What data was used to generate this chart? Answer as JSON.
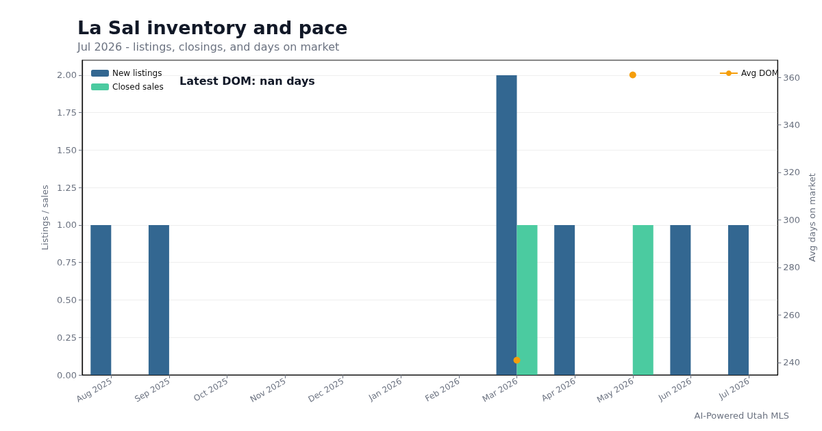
{
  "chart_data": {
    "type": "bar",
    "title": "La Sal inventory and pace",
    "subtitle": "Jul 2026 - listings, closings, and days on market",
    "categories": [
      "Aug 2025",
      "Sep 2025",
      "Oct 2025",
      "Nov 2025",
      "Dec 2025",
      "Jan 2026",
      "Feb 2026",
      "Mar 2026",
      "Apr 2026",
      "May 2026",
      "Jun 2026",
      "Jul 2026"
    ],
    "series": [
      {
        "name": "New listings",
        "color": "#336791",
        "values": [
          1,
          1,
          0,
          0,
          0,
          0,
          0,
          2,
          1,
          0,
          1,
          1
        ]
      },
      {
        "name": "Closed sales",
        "color": "#4bcba0",
        "values": [
          0,
          0,
          0,
          0,
          0,
          0,
          0,
          1,
          0,
          1,
          0,
          0
        ]
      },
      {
        "name": "Avg DOM",
        "type": "line",
        "axis": "y2",
        "color": "#f59e0b",
        "values": [
          null,
          null,
          null,
          null,
          null,
          null,
          null,
          241,
          null,
          361,
          null,
          null
        ]
      }
    ],
    "ylabel": "Listings / sales",
    "y2label": "Avg days on market",
    "ylim": [
      0,
      2.1
    ],
    "yticks": [
      {
        "value": 0,
        "label": "0.00"
      },
      {
        "value": 0.25,
        "label": "0.25"
      },
      {
        "value": 0.5,
        "label": "0.50"
      },
      {
        "value": 0.75,
        "label": "0.75"
      },
      {
        "value": 1,
        "label": "1.00"
      },
      {
        "value": 1.25,
        "label": "1.25"
      },
      {
        "value": 1.5,
        "label": "1.50"
      },
      {
        "value": 1.75,
        "label": "1.75"
      },
      {
        "value": 2,
        "label": "2.00"
      }
    ],
    "y2lim": [
      234.8,
      367.2
    ],
    "y2ticks": [
      240,
      260,
      280,
      300,
      320,
      340,
      360
    ],
    "annotations": [
      "Latest DOM: nan days",
      "AI-Powered Utah MLS"
    ],
    "grid": "y",
    "legend": "top left",
    "marker": "circle"
  }
}
